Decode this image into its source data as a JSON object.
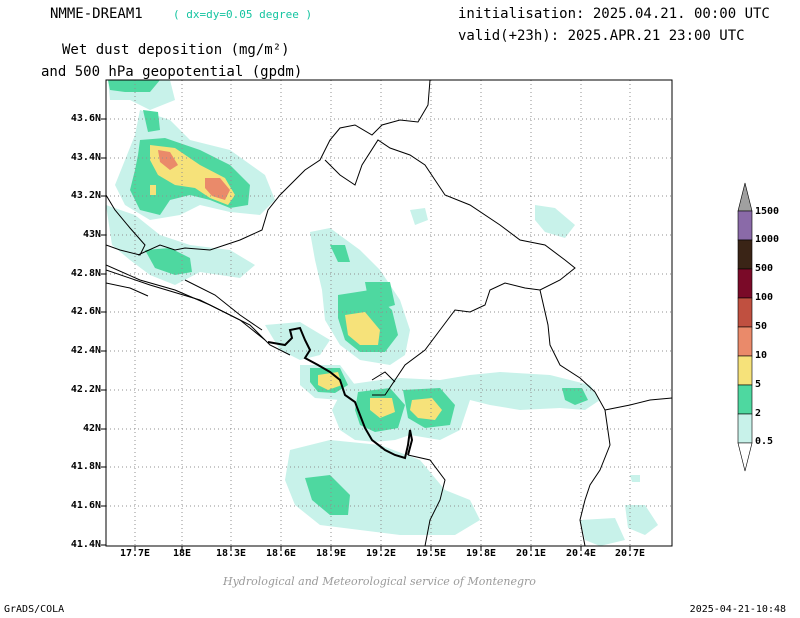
{
  "header": {
    "model": "NMME-DREAM1",
    "resolution": "( dx=dy=0.05 degree )",
    "initialisation": "initialisation: 2025.04.21. 00:00 UTC",
    "valid": "valid(+23h): 2025.APR.21 23:00 UTC",
    "variable_line1": "Wet dust deposition (mg/m²)",
    "variable_line2": "and 500 hPa geopotential (gpdm)"
  },
  "map": {
    "lat_labels": [
      "43.6N",
      "43.4N",
      "43.2N",
      "43N",
      "42.8N",
      "42.6N",
      "42.4N",
      "42.2N",
      "42N",
      "41.8N",
      "41.6N",
      "41.4N"
    ],
    "lon_labels": [
      "17.7E",
      "18E",
      "18.3E",
      "18.6E",
      "18.9E",
      "19.2E",
      "19.5E",
      "19.8E",
      "20.1E",
      "20.4E",
      "20.7E"
    ]
  },
  "colorbar": {
    "labels": [
      "1500",
      "1000",
      "500",
      "100",
      "50",
      "10",
      "5",
      "2",
      "0.5"
    ],
    "colors": [
      "#a0a0a0",
      "#8a6aa8",
      "#3a2416",
      "#7a0a28",
      "#c05040",
      "#ea8a6a",
      "#f6e27a",
      "#4ed8a0",
      "#c8f2ea"
    ]
  },
  "footer": {
    "credit": "Hydrological and Meteorological service of Montenegro",
    "software": "GrADS/COLA",
    "timestamp": "2025-04-21-10:48"
  }
}
